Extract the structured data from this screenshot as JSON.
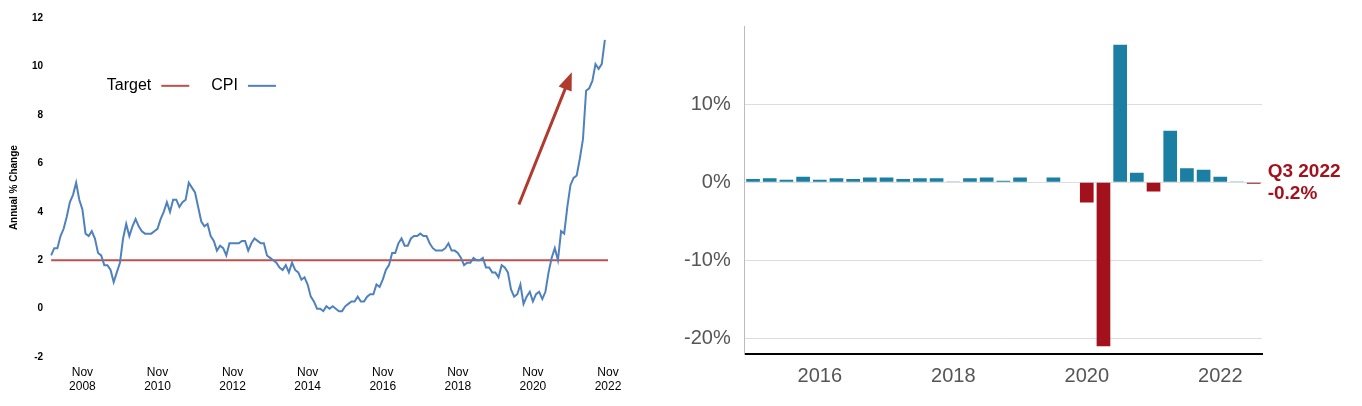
{
  "chart_data": [
    {
      "type": "line",
      "y_label": "Annual % Change",
      "legend": "upper left",
      "grid": false,
      "ylim": [
        -2,
        12
      ],
      "yticks": [
        -2,
        0,
        2,
        4,
        6,
        8,
        10,
        12
      ],
      "categories": [
        null,
        null,
        null,
        null,
        null,
        null,
        null,
        null,
        null,
        null,
        "Nov 2008",
        null,
        null,
        null,
        null,
        null,
        null,
        null,
        null,
        null,
        null,
        null,
        null,
        null,
        null,
        null,
        null,
        null,
        null,
        null,
        null,
        null,
        null,
        null,
        "Nov 2010",
        null,
        null,
        null,
        null,
        null,
        null,
        null,
        null,
        null,
        null,
        null,
        null,
        null,
        null,
        null,
        null,
        null,
        null,
        null,
        null,
        null,
        null,
        null,
        "Nov 2012",
        null,
        null,
        null,
        null,
        null,
        null,
        null,
        null,
        null,
        null,
        null,
        null,
        null,
        null,
        null,
        null,
        null,
        null,
        null,
        null,
        null,
        null,
        null,
        "Nov 2014",
        null,
        null,
        null,
        null,
        null,
        null,
        null,
        null,
        null,
        null,
        null,
        null,
        null,
        null,
        null,
        null,
        null,
        null,
        null,
        null,
        null,
        null,
        null,
        "Nov 2016",
        null,
        null,
        null,
        null,
        null,
        null,
        null,
        null,
        null,
        null,
        null,
        null,
        null,
        null,
        null,
        null,
        null,
        null,
        null,
        null,
        null,
        null,
        null,
        "Nov 2018",
        null,
        null,
        null,
        null,
        null,
        null,
        null,
        null,
        null,
        null,
        null,
        null,
        null,
        null,
        null,
        null,
        null,
        null,
        null,
        null,
        null,
        null,
        null,
        "Nov 2020",
        null,
        null,
        null,
        null,
        null,
        null,
        null,
        null,
        null,
        null,
        null,
        null,
        null,
        null,
        null,
        null,
        null,
        null,
        null,
        null,
        null,
        null,
        null,
        "Nov 2022"
      ],
      "series": [
        {
          "name": "Target",
          "color": "#c0504d",
          "line_style": "solid",
          "values": [
            2,
            2,
            2,
            2,
            2,
            2,
            2,
            2,
            2,
            2,
            2,
            2,
            2,
            2,
            2,
            2,
            2,
            2,
            2,
            2,
            2,
            2,
            2,
            2,
            2,
            2,
            2,
            2,
            2,
            2,
            2,
            2,
            2,
            2,
            2,
            2,
            2,
            2,
            2,
            2,
            2,
            2,
            2,
            2,
            2,
            2,
            2,
            2,
            2,
            2,
            2,
            2,
            2,
            2,
            2,
            2,
            2,
            2,
            2,
            2,
            2,
            2,
            2,
            2,
            2,
            2,
            2,
            2,
            2,
            2,
            2,
            2,
            2,
            2,
            2,
            2,
            2,
            2,
            2,
            2,
            2,
            2,
            2,
            2,
            2,
            2,
            2,
            2,
            2,
            2,
            2,
            2,
            2,
            2,
            2,
            2,
            2,
            2,
            2,
            2,
            2,
            2,
            2,
            2,
            2,
            2,
            2,
            2,
            2,
            2,
            2,
            2,
            2,
            2,
            2,
            2,
            2,
            2,
            2,
            2,
            2,
            2,
            2,
            2,
            2,
            2,
            2,
            2,
            2,
            2,
            2,
            2,
            2,
            2,
            2,
            2,
            2,
            2,
            2,
            2,
            2,
            2,
            2,
            2,
            2,
            2,
            2,
            2,
            2,
            2,
            2,
            2,
            2,
            2,
            2,
            2,
            2,
            2,
            2,
            2,
            2,
            2,
            2,
            2,
            2,
            2,
            2,
            2,
            2,
            2,
            2,
            2,
            2,
            2,
            2,
            2,
            2,
            2,
            2
          ]
        },
        {
          "name": "CPI",
          "color": "#4f81bd",
          "line_style": "solid",
          "values": [
            2.2,
            2.5,
            2.5,
            3.0,
            3.3,
            3.8,
            4.4,
            4.7,
            5.2,
            4.5,
            4.1,
            3.1,
            3.0,
            3.2,
            2.9,
            2.3,
            2.2,
            1.8,
            1.8,
            1.6,
            1.1,
            1.5,
            1.9,
            2.9,
            3.5,
            3.0,
            3.4,
            3.7,
            3.4,
            3.2,
            3.1,
            3.1,
            3.1,
            3.2,
            3.3,
            3.7,
            4.0,
            4.4,
            4.0,
            4.5,
            4.5,
            4.2,
            4.4,
            4.5,
            5.2,
            5.0,
            4.8,
            4.2,
            3.6,
            3.4,
            3.5,
            3.0,
            2.8,
            2.4,
            2.6,
            2.5,
            2.2,
            2.7,
            2.7,
            2.7,
            2.7,
            2.8,
            2.8,
            2.4,
            2.7,
            2.9,
            2.8,
            2.7,
            2.7,
            2.2,
            2.1,
            2.0,
            1.9,
            1.7,
            1.6,
            1.8,
            1.5,
            1.9,
            1.6,
            1.5,
            1.2,
            1.3,
            1.0,
            0.5,
            0.3,
            0.0,
            0.0,
            -0.1,
            0.1,
            0.0,
            0.1,
            0.0,
            -0.1,
            -0.1,
            0.1,
            0.2,
            0.3,
            0.3,
            0.5,
            0.3,
            0.3,
            0.5,
            0.6,
            0.6,
            1.0,
            0.9,
            1.2,
            1.6,
            1.8,
            2.3,
            2.3,
            2.7,
            2.9,
            2.6,
            2.6,
            2.9,
            3.0,
            3.0,
            3.1,
            3.0,
            3.0,
            2.7,
            2.5,
            2.4,
            2.4,
            2.4,
            2.5,
            2.7,
            2.4,
            2.4,
            2.3,
            2.1,
            1.8,
            1.9,
            1.9,
            2.1,
            2.0,
            2.0,
            2.1,
            1.7,
            1.7,
            1.5,
            1.5,
            1.3,
            1.8,
            1.7,
            1.5,
            0.8,
            0.5,
            0.6,
            1.0,
            0.2,
            0.5,
            0.7,
            0.3,
            0.6,
            0.7,
            0.4,
            0.7,
            1.5,
            2.1,
            2.5,
            2.0,
            3.2,
            3.1,
            4.2,
            5.1,
            5.4,
            5.5,
            6.2,
            7.0,
            9.0,
            9.1,
            9.4,
            10.1,
            9.9,
            10.1,
            11.1,
            null
          ]
        }
      ]
    },
    {
      "type": "bar",
      "grid": true,
      "ylim": [
        -22,
        20
      ],
      "yticks": [
        {
          "value": -20,
          "label": "-20%"
        },
        {
          "value": -10,
          "label": "-10%"
        },
        {
          "value": 0,
          "label": "0%"
        },
        {
          "value": 10,
          "label": "10%"
        }
      ],
      "categories": [
        null,
        null,
        null,
        null,
        "2016",
        null,
        null,
        null,
        null,
        null,
        null,
        null,
        "2018",
        null,
        null,
        null,
        null,
        null,
        null,
        null,
        "2020",
        null,
        null,
        null,
        null,
        null,
        null,
        null,
        "2022",
        null,
        null
      ],
      "values": [
        0.4,
        0.5,
        0.3,
        0.7,
        0.3,
        0.5,
        0.4,
        0.6,
        0.6,
        0.4,
        0.5,
        0.5,
        0.1,
        0.5,
        0.6,
        0.2,
        0.6,
        0.0,
        0.6,
        0.0,
        -2.6,
        -21.0,
        17.6,
        1.2,
        -1.2,
        6.6,
        1.8,
        1.6,
        0.7,
        0.1,
        -0.2
      ],
      "colors": [
        "#1a7fa3",
        "#1a7fa3",
        "#1a7fa3",
        "#1a7fa3",
        "#1a7fa3",
        "#1a7fa3",
        "#1a7fa3",
        "#1a7fa3",
        "#1a7fa3",
        "#1a7fa3",
        "#1a7fa3",
        "#1a7fa3",
        "#1a7fa3",
        "#1a7fa3",
        "#1a7fa3",
        "#1a7fa3",
        "#1a7fa3",
        "#1a7fa3",
        "#1a7fa3",
        "#1a7fa3",
        "#a3121c",
        "#a3121c",
        "#1a7fa3",
        "#1a7fa3",
        "#a3121c",
        "#1a7fa3",
        "#1a7fa3",
        "#1a7fa3",
        "#1a7fa3",
        "#1a7fa3",
        "#a3121c"
      ],
      "annotations": [
        "Q3 2022",
        "-0.2%"
      ]
    }
  ]
}
